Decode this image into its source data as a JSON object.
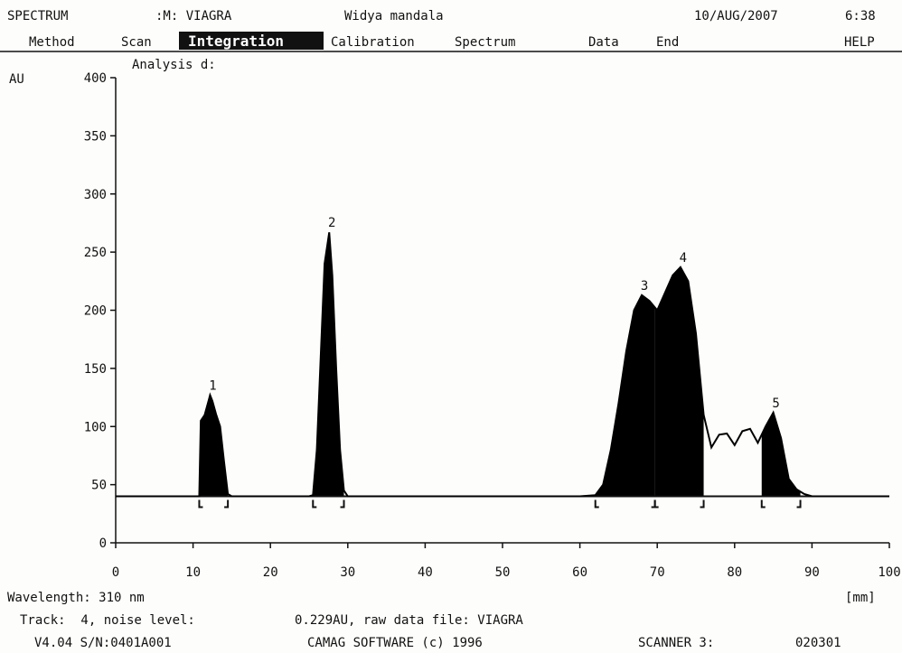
{
  "header": {
    "app": "SPECTRUM",
    "method": ":M: VIAGRA",
    "user": "Widya mandala",
    "date": "10/AUG/2007",
    "time": "6:38"
  },
  "menu": [
    "Method",
    "Scan",
    "Integration",
    "Calibration",
    "Spectrum",
    "Data",
    "End",
    "HELP"
  ],
  "active_menu": "Integration",
  "chart_data": {
    "type": "line",
    "title": "Analysis d:",
    "ylabel": "AU",
    "xlabel": "[mm]",
    "xlim": [
      0,
      100
    ],
    "xticks": [
      0,
      10,
      20,
      30,
      40,
      50,
      60,
      70,
      80,
      90,
      100
    ],
    "ylim": [
      0,
      400
    ],
    "yticks": [
      0,
      50,
      100,
      150,
      200,
      250,
      300,
      350,
      400
    ],
    "color": "#000000",
    "baseline": 40,
    "x": [
      0,
      10,
      10.8,
      11,
      11.5,
      12,
      12.2,
      12.5,
      13,
      13.5,
      14,
      14.5,
      15,
      25,
      25.5,
      26,
      26.5,
      27,
      27.6,
      28,
      28.5,
      29,
      29.5,
      30,
      60,
      62,
      63,
      64,
      65,
      66,
      67,
      68,
      69,
      70,
      71,
      72,
      73,
      74,
      75,
      76,
      77,
      78,
      79,
      80,
      81,
      82,
      83,
      84,
      85,
      86,
      87,
      88,
      89,
      90,
      100
    ],
    "values": [
      40,
      40,
      40,
      105,
      110,
      122,
      127,
      122,
      110,
      100,
      70,
      42,
      40,
      40,
      41,
      80,
      160,
      240,
      267,
      230,
      150,
      80,
      45,
      40,
      40,
      41,
      50,
      80,
      120,
      165,
      200,
      213,
      208,
      200,
      215,
      230,
      237,
      225,
      180,
      110,
      82,
      93,
      94,
      84,
      96,
      98,
      86,
      100,
      112,
      90,
      55,
      46,
      42,
      40,
      40
    ],
    "integration": [
      [
        10.8,
        14.5
      ],
      [
        25.5,
        29.5
      ],
      [
        62,
        69.7
      ],
      [
        69.7,
        76
      ],
      [
        83.5,
        88.5
      ]
    ],
    "peaks": [
      {
        "label": "1",
        "x": 12.2,
        "y": 127
      },
      {
        "label": "2",
        "x": 27.6,
        "y": 267
      },
      {
        "label": "3",
        "x": 68,
        "y": 213
      },
      {
        "label": "4",
        "x": 73,
        "y": 237
      },
      {
        "label": "5",
        "x": 85,
        "y": 112
      }
    ]
  },
  "footer": {
    "wavelength": "Wavelength: 310 nm",
    "track": "Track:  4, noise level:",
    "noise": "0.229AU, raw data file: VIAGRA",
    "version": "V4.04 S/N:0401A001",
    "copyright": "CAMAG SOFTWARE (c) 1996",
    "scanner": "SCANNER 3:",
    "scanner_id": "020301"
  }
}
